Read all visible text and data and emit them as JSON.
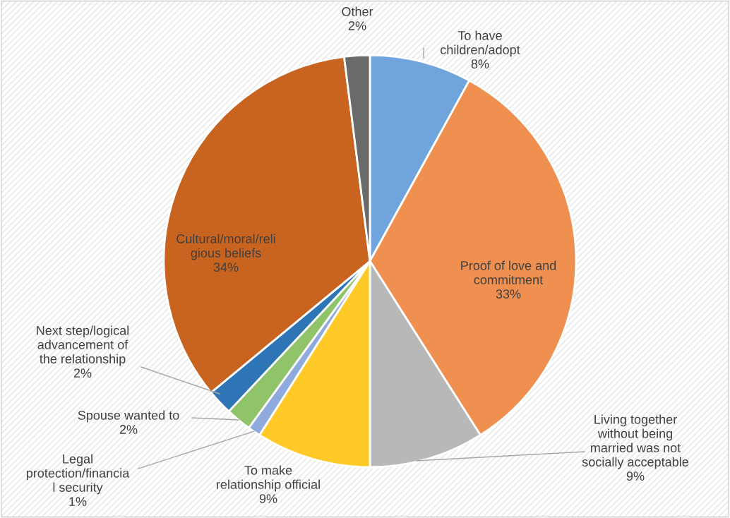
{
  "chart_data": {
    "type": "pie",
    "categories": [
      "To have\nchildren/adopt",
      "Proof of love and\ncommitment",
      "Living together\nwithout being\nmarried was not\nsocially acceptable",
      "To make\nrelationship official",
      "Legal\nprotection/financia\nl security",
      "Spouse wanted to",
      "Next step/logical\nadvancement of\nthe relationship",
      "Cultural/moral/reli\ngious beliefs",
      "Other"
    ],
    "values": [
      8,
      33,
      9,
      9,
      1,
      2,
      2,
      34,
      2
    ],
    "value_labels": [
      "8%",
      "33%",
      "9%",
      "9%",
      "1%",
      "2%",
      "2%",
      "34%",
      "2%"
    ],
    "colors": [
      "#6fa5dc",
      "#ef9050",
      "#b8b8b8",
      "#ffca28",
      "#8faadc",
      "#8fc46a",
      "#2e75b6",
      "#c96420",
      "#6a6a6a"
    ]
  }
}
